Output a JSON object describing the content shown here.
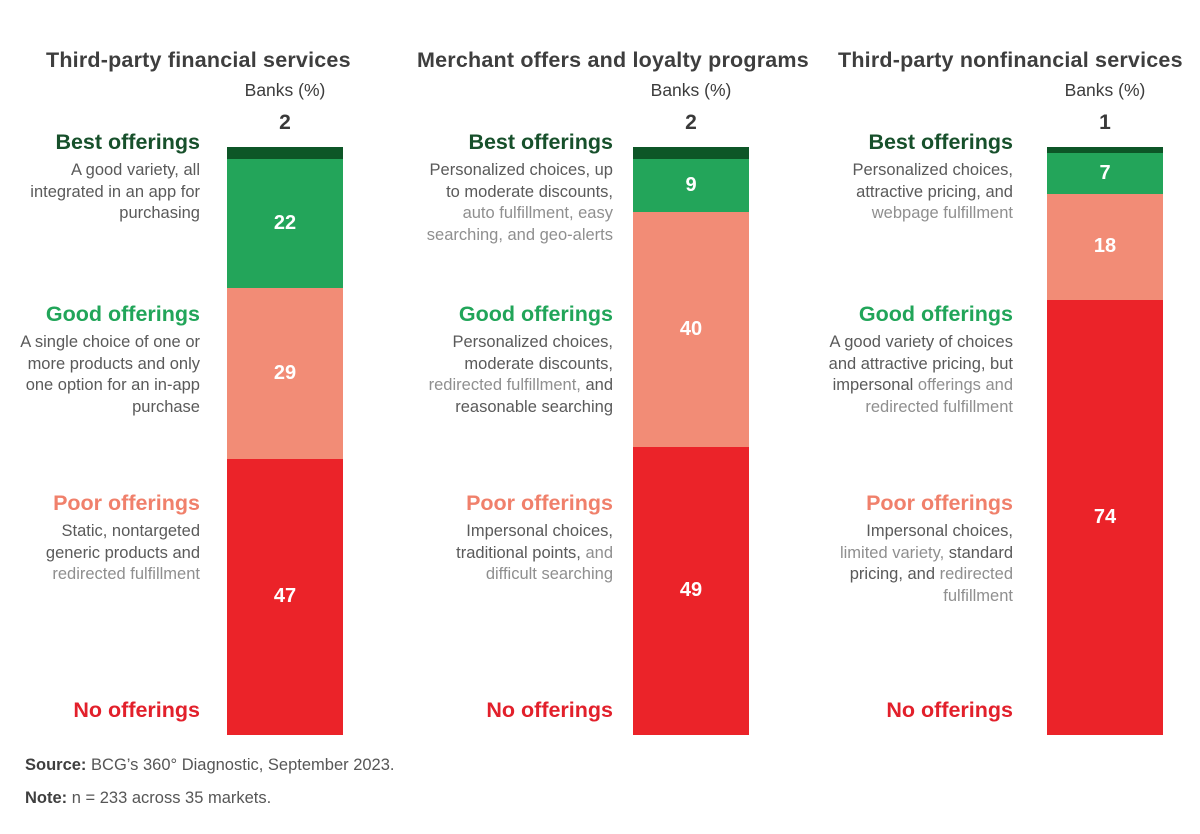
{
  "colors": {
    "best": "#0d5627",
    "good": "#23a55a",
    "poor": "#f28c76",
    "none": "#eb2329",
    "heading_best": "#17502b",
    "heading_good": "#21a559",
    "heading_poor": "#f0806b",
    "heading_none": "#e2202b",
    "title_text": "#3e3e3e",
    "desc_dark": "#5a5a5a",
    "desc_light": "#8f8f8f",
    "value_above_bar": "#393939",
    "value_in_bar": "#ffffff"
  },
  "chart_data": {
    "type": "bar",
    "subtype": "stacked-vertical-100pct",
    "legend_position": "left-inline-labels",
    "grid": false,
    "total": 100,
    "tier_order_top_to_bottom": [
      "Best offerings",
      "Good offerings",
      "Poor offerings",
      "No offerings"
    ],
    "charts": [
      {
        "title": "Third-party financial services",
        "axis_label": "Banks (%)",
        "segments": [
          {
            "key": "best",
            "tier": "Best offerings",
            "value": 2,
            "value_label_position": "above-bar",
            "desc": [
              {
                "tone": "dark",
                "text": "A good variety, all integrated in an app for purchasing"
              }
            ]
          },
          {
            "key": "good",
            "tier": "Good offerings",
            "value": 22,
            "value_label_position": "inside",
            "desc": [
              {
                "tone": "dark",
                "text": "A single choice of one or more products and only one option for an in-app purchase"
              }
            ]
          },
          {
            "key": "poor",
            "tier": "Poor offerings",
            "value": 29,
            "value_label_position": "inside",
            "desc": [
              {
                "tone": "dark",
                "text": "Static, nontargeted generic products and "
              },
              {
                "tone": "light",
                "text": "redirected fulfillment"
              }
            ]
          },
          {
            "key": "none",
            "tier": "No offerings",
            "value": 47,
            "value_label_position": "inside",
            "desc": []
          }
        ]
      },
      {
        "title": "Merchant offers and loyalty programs",
        "axis_label": "Banks (%)",
        "segments": [
          {
            "key": "best",
            "tier": "Best offerings",
            "value": 2,
            "value_label_position": "above-bar",
            "desc": [
              {
                "tone": "dark",
                "text": "Personalized choices, up to moderate discounts, "
              },
              {
                "tone": "light",
                "text": "auto fulfillment, easy searching, and geo-alerts"
              }
            ]
          },
          {
            "key": "good",
            "tier": "Good offerings",
            "value": 9,
            "value_label_position": "inside",
            "desc": [
              {
                "tone": "dark",
                "text": "Personalized choices, moderate discounts, "
              },
              {
                "tone": "light",
                "text": "redirected fulfillment, "
              },
              {
                "tone": "dark",
                "text": "and reasonable searching"
              }
            ]
          },
          {
            "key": "poor",
            "tier": "Poor offerings",
            "value": 40,
            "value_label_position": "inside",
            "desc": [
              {
                "tone": "dark",
                "text": "Impersonal choices, traditional points, "
              },
              {
                "tone": "light",
                "text": "and difficult searching"
              }
            ]
          },
          {
            "key": "none",
            "tier": "No offerings",
            "value": 49,
            "value_label_position": "inside",
            "desc": []
          }
        ]
      },
      {
        "title": "Third-party nonfinancial services",
        "axis_label": "Banks (%)",
        "segments": [
          {
            "key": "best",
            "tier": "Best offerings",
            "value": 1,
            "value_label_position": "above-bar",
            "desc": [
              {
                "tone": "dark",
                "text": "Personalized choices, attractive pricing, and "
              },
              {
                "tone": "light",
                "text": "webpage fulfillment"
              }
            ]
          },
          {
            "key": "good",
            "tier": "Good offerings",
            "value": 7,
            "value_label_position": "inside",
            "desc": [
              {
                "tone": "dark",
                "text": "A good variety of choices and attractive pricing, but impersonal "
              },
              {
                "tone": "light",
                "text": "offerings and redirected fulfillment"
              }
            ]
          },
          {
            "key": "poor",
            "tier": "Poor offerings",
            "value": 18,
            "value_label_position": "inside",
            "desc": [
              {
                "tone": "dark",
                "text": "Impersonal choices, "
              },
              {
                "tone": "light",
                "text": "limited variety, "
              },
              {
                "tone": "dark",
                "text": "standard pricing, and "
              },
              {
                "tone": "light",
                "text": "redirected fulfillment"
              }
            ]
          },
          {
            "key": "none",
            "tier": "No offerings",
            "value": 74,
            "value_label_position": "inside",
            "desc": []
          }
        ]
      }
    ]
  },
  "footer": {
    "source_label": "Source:",
    "source_text": " BCG’s 360° Diagnostic, September 2023.",
    "note_label": "Note:",
    "note_text": " n = 233 across 35 markets."
  }
}
